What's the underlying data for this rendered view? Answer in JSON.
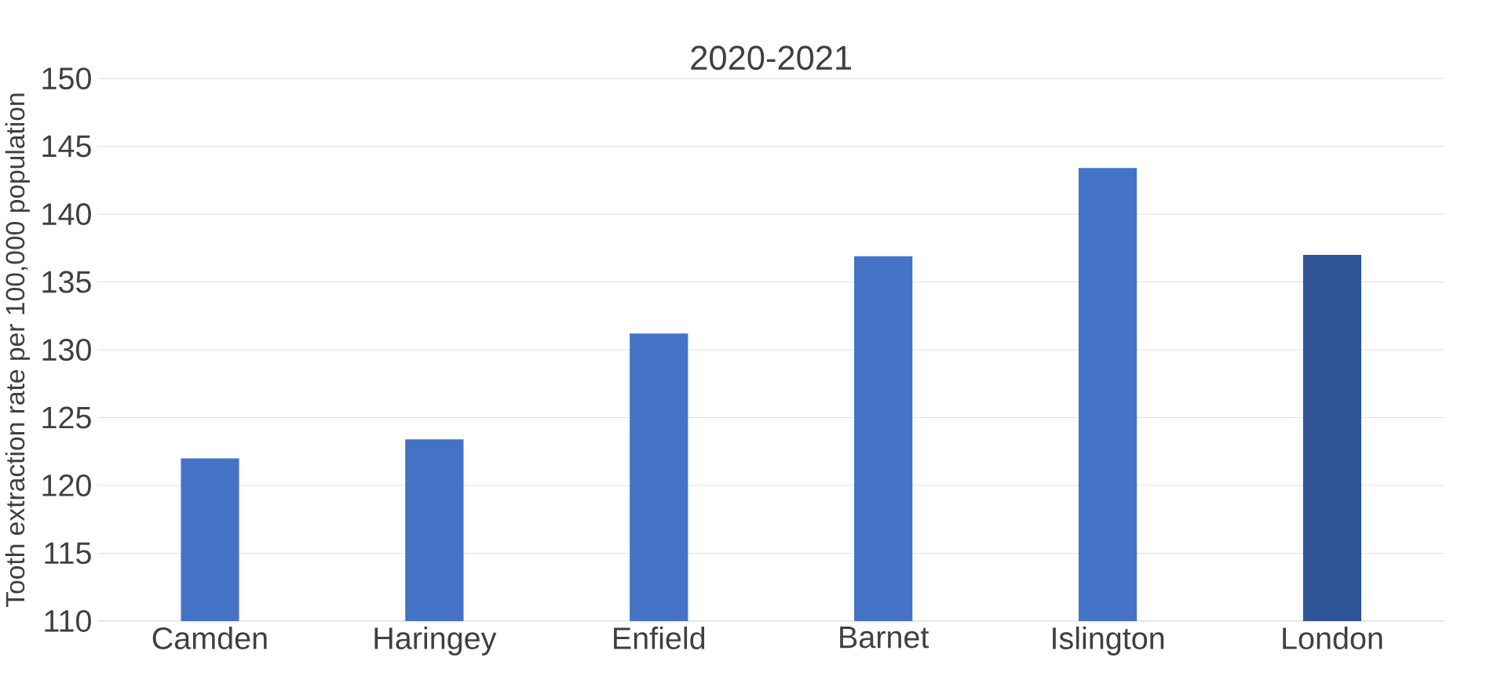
{
  "chart_data": {
    "type": "bar",
    "title": "2020-2021",
    "ylabel": "Tooth extraction rate per 100,000 population",
    "categories": [
      "Camden",
      "Haringey",
      "Enfield",
      "Barnet",
      "Islington",
      "London"
    ],
    "values": [
      122.0,
      123.4,
      131.2,
      136.9,
      143.4,
      137.0
    ],
    "colors": [
      "#4472c4",
      "#4472c4",
      "#4472c4",
      "#4472c4",
      "#4472c4",
      "#2f5597"
    ],
    "ylim": [
      110,
      150
    ],
    "yticks": [
      110,
      115,
      120,
      125,
      130,
      135,
      140,
      145,
      150
    ],
    "grid": "y"
  }
}
